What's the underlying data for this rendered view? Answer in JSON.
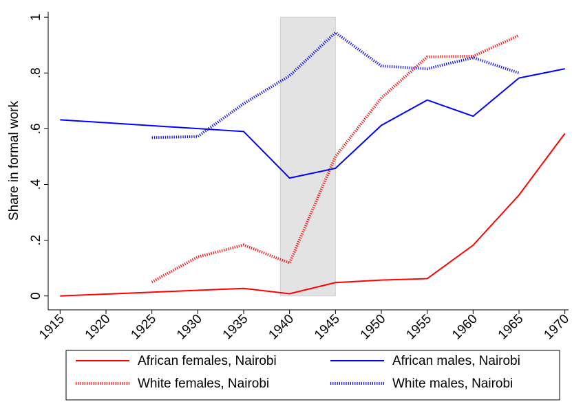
{
  "chart_data": {
    "type": "line",
    "y_label": "Share in formal work",
    "xlim": [
      1913.7,
      1970.4
    ],
    "ylim": [
      -0.05,
      1.02
    ],
    "xticks": [
      1915,
      1920,
      1925,
      1930,
      1935,
      1940,
      1945,
      1950,
      1955,
      1960,
      1965,
      1970
    ],
    "yticks": [
      {
        "value": 0,
        "label": "0"
      },
      {
        "value": 0.2,
        "label": ".2"
      },
      {
        "value": 0.4,
        "label": ".4"
      },
      {
        "value": 0.6,
        "label": ".6"
      },
      {
        "value": 0.8,
        "label": ".8"
      },
      {
        "value": 1,
        "label": "1"
      }
    ],
    "shaded_span": [
      1939,
      1945
    ],
    "series": [
      {
        "name": "African females, Nairobi",
        "color": "#ff0000",
        "style": "solid",
        "x": [
          1915,
          1935,
          1940,
          1945,
          1950,
          1955,
          1960,
          1965,
          1970
        ],
        "values": [
          0,
          0.027,
          0.008,
          0.048,
          0.057,
          0.062,
          0.182,
          0.362,
          0.583
        ]
      },
      {
        "name": "White females, Nairobi",
        "color": "#ff0000",
        "style": "dotted",
        "x": [
          1925,
          1930,
          1935,
          1940,
          1945,
          1950,
          1955,
          1960,
          1965
        ],
        "values": [
          0.05,
          0.14,
          0.183,
          0.118,
          0.5,
          0.71,
          0.858,
          0.86,
          0.935
        ]
      },
      {
        "name": "African males, Nairobi",
        "color": "#0000ff",
        "style": "solid",
        "x": [
          1915,
          1935,
          1940,
          1945,
          1950,
          1955,
          1960,
          1965,
          1970
        ],
        "values": [
          0.632,
          0.59,
          0.423,
          0.458,
          0.612,
          0.703,
          0.645,
          0.782,
          0.815
        ]
      },
      {
        "name": "White males, Nairobi",
        "color": "#0000ff",
        "style": "dotted",
        "x": [
          1925,
          1930,
          1935,
          1940,
          1945,
          1950,
          1955,
          1960,
          1965
        ],
        "values": [
          0.568,
          0.572,
          0.69,
          0.79,
          0.945,
          0.825,
          0.815,
          0.855,
          0.8
        ]
      }
    ]
  }
}
